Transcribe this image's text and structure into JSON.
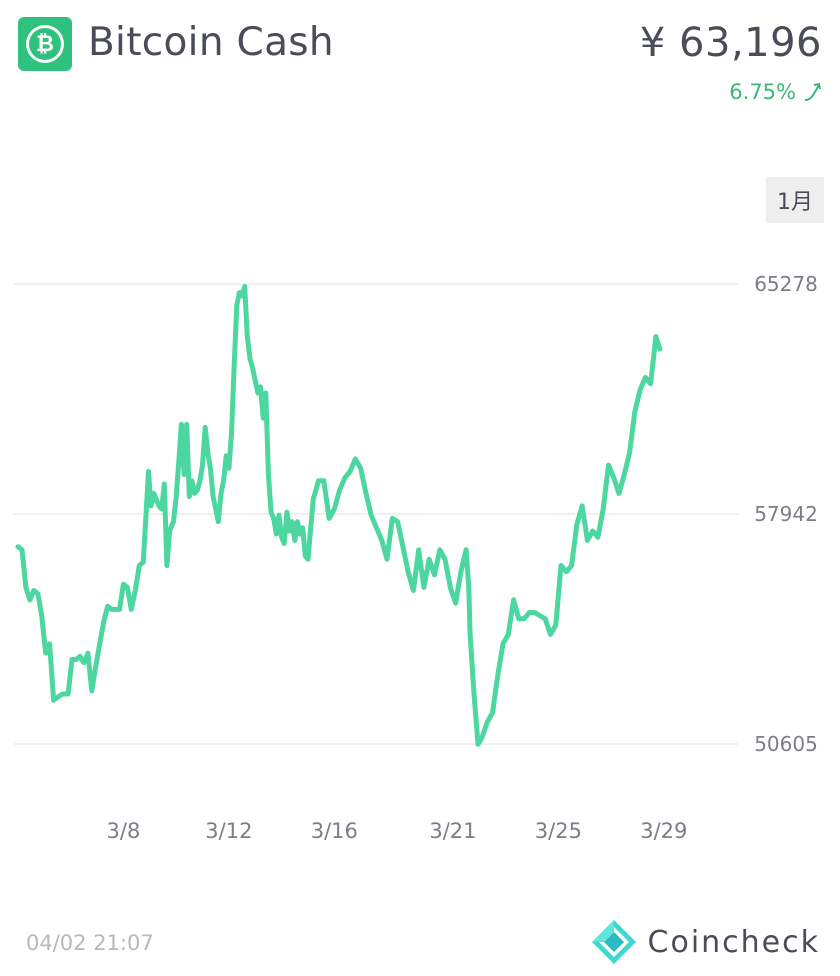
{
  "header": {
    "coin_name": "Bitcoin Cash",
    "price": "¥ 63,196",
    "change": "6.75%",
    "change_icon": "trend-up-arrow-icon",
    "logo_icon": "bitcoin-cash-logo-icon",
    "logo_symbol": "₿"
  },
  "period_button": {
    "label": "1月"
  },
  "footer": {
    "timestamp": "04/02 21:07",
    "brand": "Coincheck",
    "brand_icon": "coincheck-diamond-icon"
  },
  "colors": {
    "line": "#4cd6a0",
    "accent": "#2fc27f",
    "change": "#39b877",
    "text": "#4a4d57",
    "muted": "#7c7e87",
    "grid": "#ececee"
  },
  "chart_data": {
    "type": "line",
    "title": "",
    "xlabel": "",
    "ylabel": "",
    "x_ticks": [
      "3/8",
      "3/12",
      "3/16",
      "3/21",
      "3/25",
      "3/29"
    ],
    "x_tick_positions": [
      5,
      9,
      13,
      17.5,
      21.5,
      25.5
    ],
    "y_ticks": [
      65278,
      57942,
      50605
    ],
    "ylim": [
      50605,
      65278
    ],
    "xlim": [
      1,
      28.2
    ],
    "grid": true,
    "series": [
      {
        "values": [
          [
            1.0,
            56900
          ],
          [
            1.15,
            56800
          ],
          [
            1.3,
            55600
          ],
          [
            1.45,
            55200
          ],
          [
            1.6,
            55500
          ],
          [
            1.75,
            55400
          ],
          [
            1.9,
            54700
          ],
          [
            2.05,
            53500
          ],
          [
            2.2,
            53800
          ],
          [
            2.35,
            52000
          ],
          [
            2.5,
            52100
          ],
          [
            2.7,
            52200
          ],
          [
            2.9,
            52200
          ],
          [
            3.05,
            53300
          ],
          [
            3.2,
            53300
          ],
          [
            3.35,
            53400
          ],
          [
            3.5,
            53200
          ],
          [
            3.65,
            53500
          ],
          [
            3.8,
            52300
          ],
          [
            3.95,
            53100
          ],
          [
            4.1,
            53800
          ],
          [
            4.25,
            54500
          ],
          [
            4.4,
            55000
          ],
          [
            4.55,
            54900
          ],
          [
            4.7,
            54900
          ],
          [
            4.85,
            54900
          ],
          [
            5.0,
            55700
          ],
          [
            5.15,
            55600
          ],
          [
            5.3,
            54900
          ],
          [
            5.45,
            55500
          ],
          [
            5.6,
            56300
          ],
          [
            5.75,
            56400
          ],
          [
            5.85,
            57800
          ],
          [
            5.95,
            59300
          ],
          [
            6.05,
            58200
          ],
          [
            6.15,
            58600
          ],
          [
            6.25,
            58400
          ],
          [
            6.35,
            58200
          ],
          [
            6.45,
            58100
          ],
          [
            6.55,
            58900
          ],
          [
            6.65,
            56300
          ],
          [
            6.75,
            57400
          ],
          [
            6.9,
            57700
          ],
          [
            7.0,
            58500
          ],
          [
            7.1,
            59600
          ],
          [
            7.2,
            60800
          ],
          [
            7.3,
            59200
          ],
          [
            7.4,
            60800
          ],
          [
            7.5,
            58500
          ],
          [
            7.6,
            59000
          ],
          [
            7.7,
            58600
          ],
          [
            7.8,
            58700
          ],
          [
            7.9,
            59000
          ],
          [
            8.0,
            59500
          ],
          [
            8.1,
            60700
          ],
          [
            8.2,
            59900
          ],
          [
            8.3,
            59400
          ],
          [
            8.4,
            58500
          ],
          [
            8.5,
            58100
          ],
          [
            8.6,
            57700
          ],
          [
            8.7,
            58600
          ],
          [
            8.8,
            59000
          ],
          [
            8.9,
            59800
          ],
          [
            9.0,
            59400
          ],
          [
            9.1,
            60500
          ],
          [
            9.2,
            62700
          ],
          [
            9.3,
            64600
          ],
          [
            9.4,
            65000
          ],
          [
            9.5,
            64900
          ],
          [
            9.6,
            65200
          ],
          [
            9.7,
            63600
          ],
          [
            9.8,
            62900
          ],
          [
            9.9,
            62600
          ],
          [
            10.0,
            62200
          ],
          [
            10.1,
            61800
          ],
          [
            10.2,
            62000
          ],
          [
            10.3,
            61000
          ],
          [
            10.4,
            61800
          ],
          [
            10.5,
            59200
          ],
          [
            10.6,
            58000
          ],
          [
            10.7,
            57800
          ],
          [
            10.8,
            57300
          ],
          [
            10.9,
            57900
          ],
          [
            11.0,
            57200
          ],
          [
            11.1,
            57000
          ],
          [
            11.2,
            58000
          ],
          [
            11.3,
            57400
          ],
          [
            11.4,
            57700
          ],
          [
            11.5,
            57100
          ],
          [
            11.6,
            57700
          ],
          [
            11.7,
            57300
          ],
          [
            11.8,
            57500
          ],
          [
            11.9,
            56600
          ],
          [
            12.0,
            56500
          ],
          [
            12.2,
            58400
          ],
          [
            12.4,
            59000
          ],
          [
            12.6,
            59000
          ],
          [
            12.8,
            57800
          ],
          [
            13.0,
            58100
          ],
          [
            13.2,
            58700
          ],
          [
            13.4,
            59100
          ],
          [
            13.6,
            59300
          ],
          [
            13.8,
            59700
          ],
          [
            14.0,
            59400
          ],
          [
            14.2,
            58600
          ],
          [
            14.4,
            57900
          ],
          [
            14.6,
            57500
          ],
          [
            14.8,
            57100
          ],
          [
            15.0,
            56500
          ],
          [
            15.2,
            57800
          ],
          [
            15.4,
            57700
          ],
          [
            15.6,
            56900
          ],
          [
            15.8,
            56100
          ],
          [
            16.0,
            55500
          ],
          [
            16.2,
            56800
          ],
          [
            16.4,
            55600
          ],
          [
            16.6,
            56500
          ],
          [
            16.8,
            56000
          ],
          [
            17.0,
            56800
          ],
          [
            17.2,
            56500
          ],
          [
            17.4,
            55600
          ],
          [
            17.6,
            55100
          ],
          [
            17.8,
            56100
          ],
          [
            18.0,
            56800
          ],
          [
            18.1,
            55600
          ],
          [
            18.15,
            54100
          ],
          [
            18.3,
            52200
          ],
          [
            18.45,
            50600
          ],
          [
            18.6,
            50800
          ],
          [
            18.8,
            51300
          ],
          [
            19.0,
            51600
          ],
          [
            19.2,
            52800
          ],
          [
            19.4,
            53800
          ],
          [
            19.6,
            54100
          ],
          [
            19.8,
            55200
          ],
          [
            20.0,
            54600
          ],
          [
            20.2,
            54600
          ],
          [
            20.4,
            54800
          ],
          [
            20.6,
            54800
          ],
          [
            20.8,
            54700
          ],
          [
            21.0,
            54600
          ],
          [
            21.2,
            54100
          ],
          [
            21.4,
            54400
          ],
          [
            21.6,
            56300
          ],
          [
            21.8,
            56100
          ],
          [
            22.0,
            56300
          ],
          [
            22.2,
            57600
          ],
          [
            22.4,
            58200
          ],
          [
            22.6,
            57100
          ],
          [
            22.8,
            57400
          ],
          [
            23.0,
            57200
          ],
          [
            23.2,
            58100
          ],
          [
            23.4,
            59500
          ],
          [
            23.6,
            59100
          ],
          [
            23.8,
            58600
          ],
          [
            24.0,
            59200
          ],
          [
            24.2,
            59900
          ],
          [
            24.4,
            61200
          ],
          [
            24.6,
            61900
          ],
          [
            24.8,
            62300
          ],
          [
            25.0,
            62100
          ],
          [
            25.2,
            63600
          ],
          [
            25.35,
            63200
          ]
        ]
      }
    ]
  }
}
